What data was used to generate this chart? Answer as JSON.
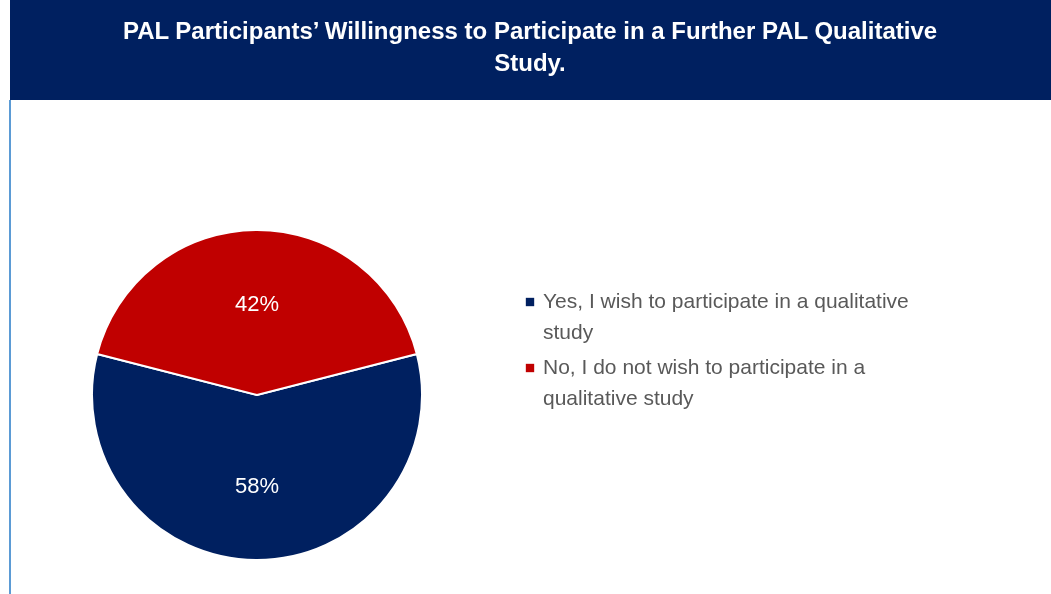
{
  "chart_data": {
    "type": "pie",
    "title": "PAL Participants’ Willingness to Participate in a Further PAL Qualitative Study.",
    "categories": [
      "Yes, I wish to participate in a qualitative study",
      "No, I do not wish to participate in a qualitative study"
    ],
    "values": [
      58,
      42
    ],
    "value_labels": [
      "58%",
      "42%"
    ],
    "colors": [
      "#002060",
      "#c00000"
    ],
    "legend": "right"
  }
}
